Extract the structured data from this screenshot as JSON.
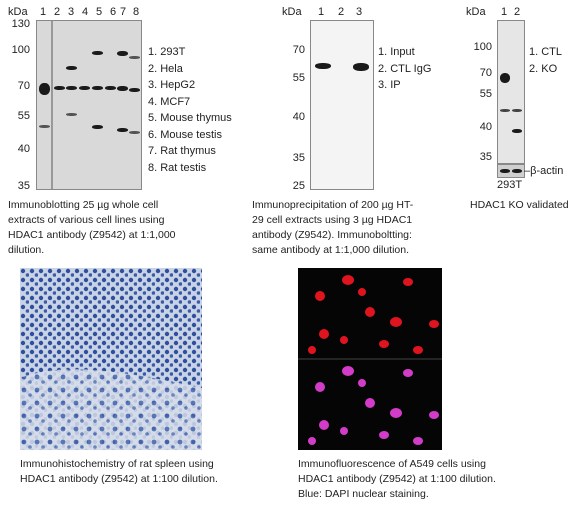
{
  "panel_a": {
    "unit": "kDa",
    "lanes": [
      "1",
      "2",
      "3",
      "4",
      "5",
      "6",
      "7",
      "8"
    ],
    "markers": [
      "130",
      "100",
      "70",
      "55",
      "40",
      "35"
    ],
    "legend": [
      "1. 293T",
      "2. Hela",
      "3. HepG2",
      "4. MCF7",
      "5. Mouse thymus",
      "6. Mouse testis",
      "7. Rat thymus",
      "8. Rat testis"
    ],
    "caption": [
      "Immunoblotting 25 µg whole cell",
      "extracts of various cell lines using",
      "HDAC1 antibody (Z9542) at 1:1,000",
      "dilution."
    ]
  },
  "panel_b": {
    "unit": "kDa",
    "lanes": [
      "1",
      "2",
      "3"
    ],
    "markers": [
      "70",
      "55",
      "40",
      "35",
      "25"
    ],
    "legend": [
      "1. Input",
      "2. CTL IgG",
      "3. IP"
    ],
    "caption": [
      "Immunoprecipitation of 200 µg HT-",
      "29 cell extracts using 3 µg HDAC1",
      "antibody (Z9542). Immunoboltting:",
      "same antibody at 1:1,000 dilution."
    ]
  },
  "panel_c": {
    "unit": "kDa",
    "lanes": [
      "1",
      "2"
    ],
    "markers": [
      "100",
      "70",
      "55",
      "40",
      "35"
    ],
    "legend": [
      "1. CTL",
      "2. KO"
    ],
    "actin_label": "–β-actin",
    "cell_line": "293T",
    "caption": [
      "HDAC1 KO validated"
    ]
  },
  "panel_d": {
    "caption": [
      "Immunohistochemistry of rat spleen using",
      "HDAC1 antibody (Z9542) at 1:100 dilution."
    ]
  },
  "panel_e": {
    "caption": [
      "Immunofluorescence of A549 cells using",
      "HDAC1 antibody (Z9542) at 1:100 dilution.",
      "Blue: DAPI nuclear staining."
    ]
  },
  "colors": {
    "ihc_bg": "#c9d3e6",
    "ihc_nuclei": "#2f4f9c",
    "if_bg": "#050505",
    "if_red": "#e0141e",
    "if_magenta": "#d23cc8"
  }
}
